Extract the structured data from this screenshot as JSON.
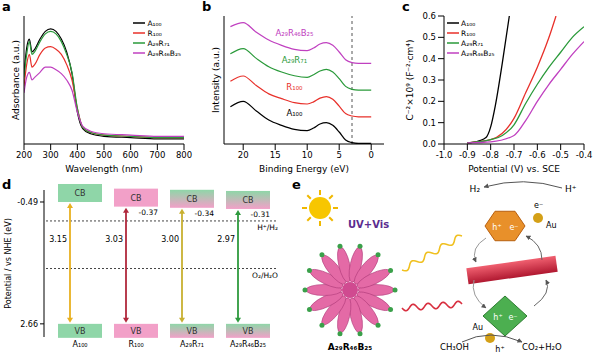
{
  "chart_data": [
    {
      "panel": "a",
      "type": "line",
      "x_label": "Wavelength (nm)",
      "y_label": "Adsorbance (a.u.)",
      "x": [
        200,
        210,
        220,
        230,
        240,
        260,
        280,
        300,
        320,
        340,
        360,
        380,
        400,
        420,
        450,
        500,
        600,
        700,
        800
      ],
      "xlim": [
        200,
        800
      ],
      "xticks": [
        200,
        300,
        400,
        500,
        600,
        700,
        800
      ],
      "ylim": [
        0,
        1
      ],
      "tick_labels": "x",
      "legend": "upper right",
      "series": [
        {
          "name": "A₁₀₀",
          "color": "#000000",
          "values": [
            0.55,
            0.75,
            0.82,
            0.72,
            0.74,
            0.82,
            0.88,
            0.9,
            0.88,
            0.82,
            0.72,
            0.55,
            0.25,
            0.12,
            0.08,
            0.06,
            0.05,
            0.04,
            0.04
          ]
        },
        {
          "name": "R₁₀₀",
          "color": "#e8302a",
          "values": [
            0.45,
            0.62,
            0.7,
            0.6,
            0.62,
            0.7,
            0.75,
            0.76,
            0.74,
            0.7,
            0.62,
            0.5,
            0.28,
            0.13,
            0.09,
            0.07,
            0.06,
            0.05,
            0.05
          ]
        },
        {
          "name": "A₂₉R₇₁",
          "color": "#2a9a3a",
          "values": [
            0.52,
            0.7,
            0.8,
            0.7,
            0.72,
            0.8,
            0.86,
            0.88,
            0.86,
            0.8,
            0.7,
            0.56,
            0.28,
            0.13,
            0.09,
            0.07,
            0.06,
            0.05,
            0.05
          ]
        },
        {
          "name": "A₂₉R₄₆B₂₅",
          "color": "#c040c0",
          "values": [
            0.4,
            0.52,
            0.56,
            0.5,
            0.52,
            0.56,
            0.6,
            0.6,
            0.58,
            0.55,
            0.5,
            0.42,
            0.25,
            0.14,
            0.1,
            0.08,
            0.07,
            0.06,
            0.06
          ]
        }
      ]
    },
    {
      "panel": "b",
      "type": "line",
      "x_label": "Binding Energy (eV)",
      "y_label": "Intensity (a.u.)",
      "x": [
        22,
        20,
        18,
        16,
        14,
        12,
        10,
        9,
        8,
        7,
        6,
        5,
        4,
        3,
        2,
        1,
        0
      ],
      "xlim": [
        23,
        -2
      ],
      "xticks": [
        20,
        15,
        10,
        5,
        0
      ],
      "ylim": [
        0,
        4.8
      ],
      "tick_labels": "x",
      "vline": 3,
      "series": [
        {
          "name": "A₁₀₀",
          "color": "#000000",
          "values": [
            1.4,
            1.6,
            1.25,
            0.9,
            0.7,
            0.55,
            0.5,
            0.6,
            0.75,
            0.8,
            0.7,
            0.45,
            0.15,
            0.05,
            0.02,
            0.02,
            0.02
          ]
        },
        {
          "name": "R₁₀₀",
          "color": "#e8302a",
          "values": [
            2.35,
            2.55,
            2.2,
            1.88,
            1.7,
            1.55,
            1.5,
            1.58,
            1.72,
            1.78,
            1.68,
            1.42,
            1.14,
            1.05,
            1.02,
            1.02,
            1.02
          ]
        },
        {
          "name": "A₂₉R₇₁",
          "color": "#2a9a3a",
          "values": [
            3.38,
            3.58,
            3.22,
            2.9,
            2.7,
            2.56,
            2.5,
            2.6,
            2.74,
            2.8,
            2.7,
            2.45,
            2.16,
            2.05,
            2.02,
            2.02,
            2.02
          ]
        },
        {
          "name": "A₂₉R₄₆B₂₅",
          "color": "#c040c0",
          "values": [
            4.4,
            4.55,
            4.2,
            3.9,
            3.7,
            3.55,
            3.5,
            3.6,
            3.75,
            3.8,
            3.7,
            3.45,
            3.16,
            3.05,
            3.02,
            3.02,
            3.02
          ]
        }
      ]
    },
    {
      "panel": "c",
      "type": "line",
      "x_label": "Potential (V) vs. SCE",
      "y_label": "C⁻²×10⁹ (F⁻²·cm⁴)",
      "xlim": [
        -1,
        -0.4
      ],
      "xticks": [
        {
          "value": -1,
          "label": "-1.0"
        },
        -0.9,
        -0.8,
        -0.7,
        -0.6,
        -0.5,
        -0.4
      ],
      "ylim": [
        0,
        0.6
      ],
      "yticks": [
        {
          "value": 0,
          "label": "0.0"
        },
        0.1,
        0.2,
        0.3,
        0.4,
        0.5,
        0.6
      ],
      "legend": "upper left",
      "series": [
        {
          "name": "A₁₀₀",
          "color": "#000000",
          "x": [
            -0.9,
            -0.85,
            -0.82,
            -0.8,
            -0.78,
            -0.75,
            -0.72
          ],
          "values": [
            0.005,
            0.015,
            0.03,
            0.08,
            0.18,
            0.38,
            0.6
          ]
        },
        {
          "name": "R₁₀₀",
          "color": "#e8302a",
          "x": [
            -0.9,
            -0.8,
            -0.75,
            -0.7,
            -0.65,
            -0.6,
            -0.55,
            -0.52
          ],
          "values": [
            0.005,
            0.02,
            0.05,
            0.12,
            0.24,
            0.36,
            0.5,
            0.6
          ]
        },
        {
          "name": "A₂₉R₇₁",
          "color": "#2a9a3a",
          "x": [
            -0.9,
            -0.8,
            -0.75,
            -0.7,
            -0.65,
            -0.6,
            -0.55,
            -0.5,
            -0.45,
            -0.4
          ],
          "values": [
            0.005,
            0.02,
            0.04,
            0.09,
            0.19,
            0.28,
            0.36,
            0.43,
            0.5,
            0.55
          ]
        },
        {
          "name": "A₂₉R₄₆B₂₅",
          "color": "#c040c0",
          "x": [
            -0.9,
            -0.8,
            -0.7,
            -0.65,
            -0.6,
            -0.55,
            -0.5,
            -0.45,
            -0.4
          ],
          "values": [
            0.005,
            0.01,
            0.04,
            0.11,
            0.2,
            0.28,
            0.35,
            0.42,
            0.48
          ]
        }
      ]
    }
  ],
  "band_diagram": {
    "panel": "d",
    "y_label": "Potential / vs NHE (eV)",
    "ylim": [
      -0.8,
      3.0
    ],
    "yticks": [
      -0.49,
      2.66
    ],
    "band_labels": [
      "CB",
      "VB"
    ],
    "materials": [
      {
        "name": "A₁₀₀",
        "cb": -0.49,
        "vb": 2.66,
        "gap": 3.15,
        "colors": [
          "#8fd6a8",
          "#8fd6a8"
        ],
        "color": "#e8b020"
      },
      {
        "name": "R₁₀₀",
        "cb": -0.37,
        "cb_label": "-0.37",
        "vb": 2.66,
        "gap": 3.03,
        "colors": [
          "#f2a0c8",
          "#f2a0c8"
        ],
        "color": "#b0283c"
      },
      {
        "name": "A₂₉R₇₁",
        "cb": -0.34,
        "cb_label": "-0.34",
        "vb": 2.66,
        "gap": 3.0,
        "gap_label": "3.00",
        "colors": [
          "#8fd6a8",
          "#f2a0c8"
        ],
        "color": "#c8b030"
      },
      {
        "name": "A₂₉R₄₆B₂₅",
        "cb": -0.31,
        "cb_label": "-0.31",
        "vb": 2.66,
        "gap": 2.97,
        "colors": [
          "#8fd6a8",
          "#f2a0c8"
        ],
        "color": "#2e9a3e"
      }
    ],
    "redox": [
      {
        "label": "H⁺/H₂",
        "value": 0
      },
      {
        "label": "O₂/H₂O",
        "value": 1.23
      }
    ]
  },
  "schematic": {
    "panel": "e",
    "light": "UV+Vis",
    "catalyst": "A₂₉R₄₆B₂₅",
    "cocatalyst": "Au",
    "electron": "e⁻",
    "hole": "h⁺",
    "reduction": [
      "H⁺",
      "H₂"
    ],
    "oxidation": [
      "CH₃OH",
      "CO₂+H₂O"
    ]
  }
}
